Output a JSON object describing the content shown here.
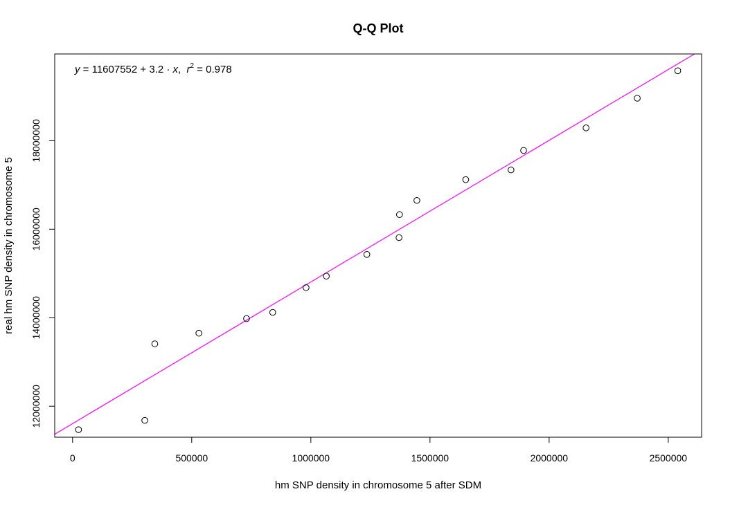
{
  "chart_data": {
    "type": "scatter",
    "title": "Q-Q Plot",
    "xlabel": "hm SNP density in chromosome 5 after SDM",
    "ylabel": "real hm SNP density in chromosome 5",
    "xlim": [
      -75000,
      2640000
    ],
    "ylim": [
      11300000,
      19960000
    ],
    "x_ticks": [
      0,
      500000,
      1000000,
      1500000,
      2000000,
      2500000
    ],
    "x_tick_labels": [
      "0",
      "500000",
      "1000000",
      "1500000",
      "2000000",
      "2500000"
    ],
    "y_ticks": [
      12000000,
      14000000,
      16000000,
      18000000
    ],
    "y_tick_labels": [
      "12000000",
      "14000000",
      "16000000",
      "18000000"
    ],
    "grid": false,
    "series": [
      {
        "marker": "open-circle",
        "color": "#000000",
        "x": [
          25000,
          303000,
          345000,
          530000,
          730000,
          840000,
          980000,
          1065000,
          1235000,
          1370000,
          1372000,
          1445000,
          1650000,
          1840000,
          1893000,
          2155000,
          2370000,
          2540000
        ],
        "y": [
          11470000,
          11680000,
          13410000,
          13650000,
          13980000,
          14120000,
          14680000,
          14940000,
          15430000,
          15810000,
          16330000,
          16650000,
          17120000,
          17340000,
          17780000,
          18290000,
          18960000,
          19580000
        ]
      }
    ],
    "fit_line": {
      "intercept": 11607552,
      "slope": 3.2,
      "color": "#ff00ff"
    },
    "annotation": {
      "y": "y",
      "eq": " = 11607552 + 3.2 · ",
      "x": "x",
      "sep": ",  ",
      "r": "r",
      "sup": "2",
      "val": " = 0.978"
    }
  }
}
